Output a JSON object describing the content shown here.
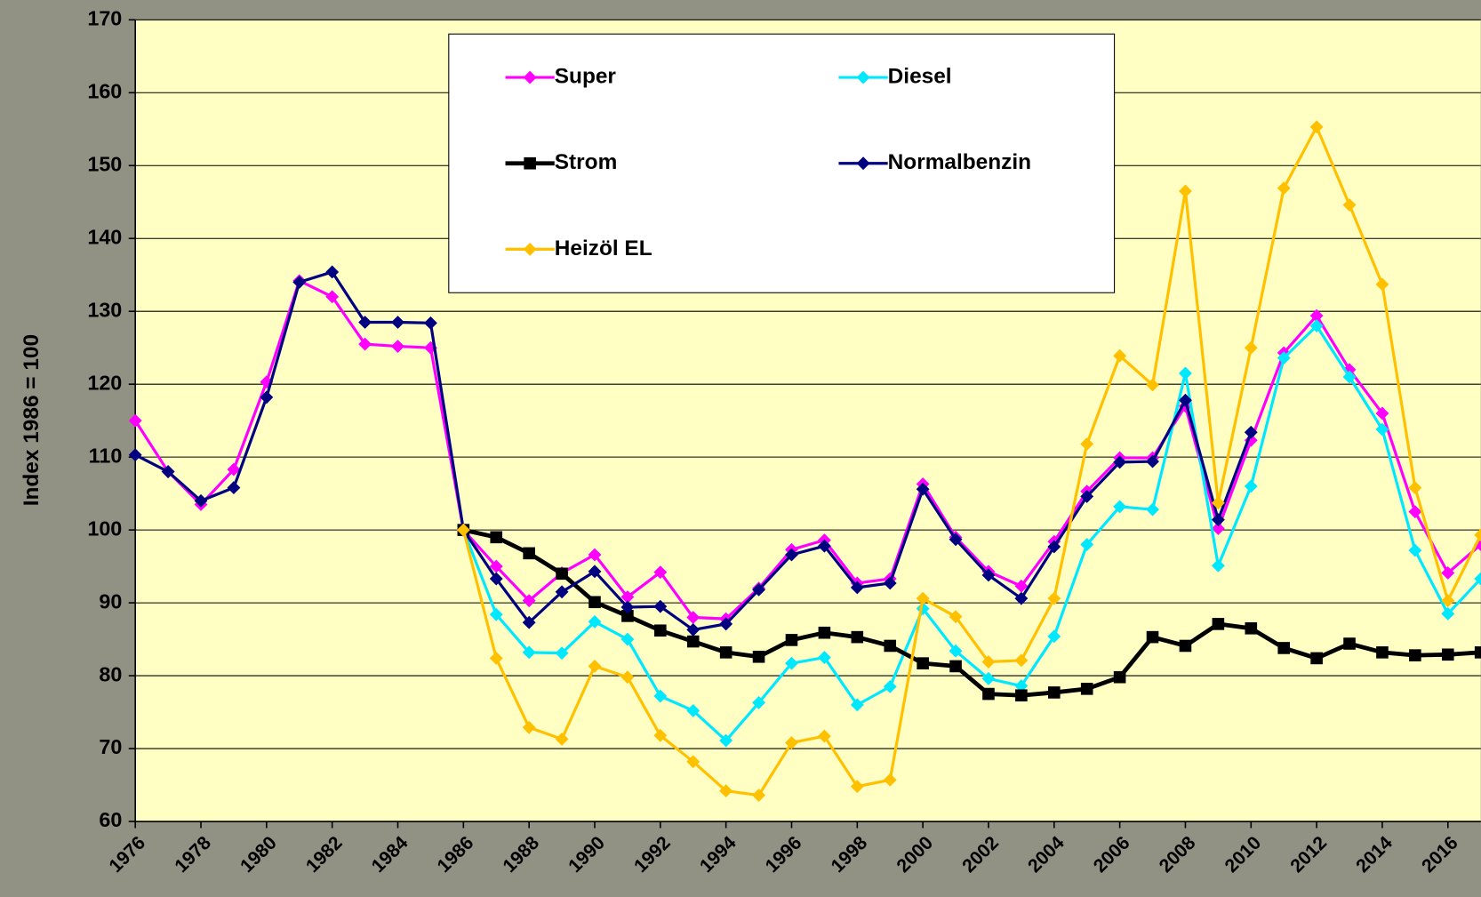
{
  "chart_data": {
    "type": "line",
    "y_label": "Index 1986 = 100",
    "x": [
      1976,
      1977,
      1978,
      1979,
      1980,
      1981,
      1982,
      1983,
      1984,
      1985,
      1986,
      1987,
      1988,
      1989,
      1990,
      1991,
      1992,
      1993,
      1994,
      1995,
      1996,
      1997,
      1998,
      1999,
      2000,
      2001,
      2002,
      2003,
      2004,
      2005,
      2006,
      2007,
      2008,
      2009,
      2010,
      2011,
      2012,
      2013,
      2014,
      2015,
      2016,
      2017
    ],
    "xlim": [
      1976,
      2017
    ],
    "xticks": [
      1976,
      1978,
      1980,
      1982,
      1984,
      1986,
      1988,
      1990,
      1992,
      1994,
      1996,
      1998,
      2000,
      2002,
      2004,
      2006,
      2008,
      2010,
      2012,
      2014,
      2016
    ],
    "ylim": [
      60,
      170
    ],
    "yticks": [
      60,
      70,
      80,
      90,
      100,
      110,
      120,
      130,
      140,
      150,
      160,
      170
    ],
    "grid": true,
    "legend": "top",
    "series": [
      {
        "name": "Super",
        "color": "#ff00ff",
        "marker": "diamond",
        "values": [
          115,
          108,
          103.5,
          108.3,
          120.3,
          134.2,
          132,
          125.5,
          125.2,
          125,
          100,
          95,
          90.3,
          94.1,
          96.6,
          90.8,
          94.2,
          88,
          87.8,
          92,
          97.3,
          98.6,
          92.7,
          93.3,
          106.3,
          99,
          94.3,
          92.3,
          98.4,
          105.3,
          109.9,
          109.9,
          117,
          100.2,
          112.3,
          124.3,
          129.4,
          122,
          116,
          102.5,
          94.1,
          98
        ]
      },
      {
        "name": "Diesel",
        "color": "#00e8ff",
        "marker": "diamond",
        "values": [
          null,
          null,
          null,
          null,
          null,
          null,
          null,
          null,
          null,
          null,
          100,
          88.4,
          83.2,
          83.1,
          87.4,
          85,
          77.2,
          75.2,
          71.1,
          76.3,
          81.7,
          82.5,
          76,
          78.5,
          89.2,
          83.4,
          79.6,
          78.6,
          85.4,
          98,
          103.2,
          102.8,
          121.5,
          95.1,
          106,
          123.6,
          128,
          121,
          113.8,
          97.2,
          88.5,
          93.3
        ]
      },
      {
        "name": "Strom",
        "color": "#000000",
        "marker": "square",
        "values": [
          null,
          null,
          null,
          null,
          null,
          null,
          null,
          null,
          null,
          null,
          100,
          99,
          96.8,
          94,
          90.1,
          88.2,
          86.2,
          84.7,
          83.2,
          82.6,
          84.9,
          85.9,
          85.3,
          84.1,
          81.7,
          81.3,
          77.5,
          77.3,
          77.7,
          78.2,
          79.8,
          85.3,
          84.1,
          87.1,
          86.5,
          83.8,
          82.4,
          84.4,
          83.2,
          82.8,
          82.9,
          83.2
        ]
      },
      {
        "name": "Normalbenzin",
        "color": "#000080",
        "marker": "diamond",
        "values": [
          110.3,
          108,
          104,
          105.8,
          118.2,
          134,
          135.4,
          128.5,
          128.5,
          128.4,
          100,
          93.3,
          87.3,
          91.5,
          94.3,
          89.4,
          89.5,
          86.3,
          87.1,
          91.8,
          96.6,
          97.8,
          92.1,
          92.7,
          105.6,
          98.7,
          93.8,
          90.6,
          97.7,
          104.6,
          109.3,
          109.4,
          117.8,
          101.4,
          113.4,
          null,
          null,
          null,
          null,
          null,
          null,
          null
        ]
      },
      {
        "name": "Heizöl EL",
        "color": "#ffc000",
        "marker": "diamond",
        "values": [
          null,
          null,
          null,
          null,
          null,
          null,
          null,
          null,
          null,
          null,
          100,
          82.4,
          72.9,
          71.3,
          81.3,
          79.8,
          71.8,
          68.2,
          64.2,
          63.6,
          70.8,
          71.7,
          64.8,
          65.7,
          90.6,
          88.1,
          81.9,
          82.1,
          90.6,
          111.8,
          123.9,
          119.9,
          146.5,
          103.7,
          125,
          146.9,
          155.3,
          144.6,
          133.7,
          105.8,
          90.3,
          99.3
        ]
      }
    ]
  }
}
